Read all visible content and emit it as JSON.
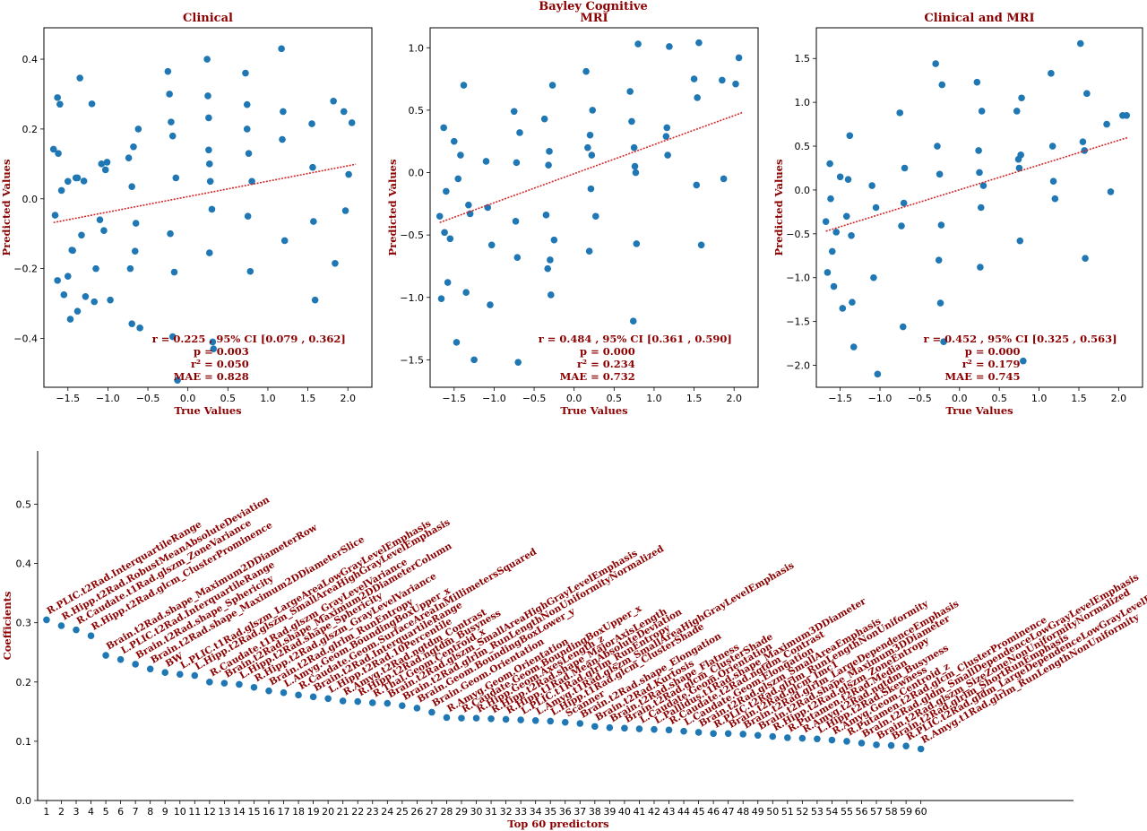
{
  "suptitle": "Bayley Cognitive",
  "chart_data": [
    {
      "type": "scatter",
      "title": "Clinical",
      "xlabel": "True Values",
      "ylabel": "Predicted Values",
      "xlim": [
        -1.8,
        2.3
      ],
      "ylim": [
        -0.54,
        0.49
      ],
      "xticks": [
        -1.5,
        -1.0,
        -0.5,
        0.0,
        0.5,
        1.0,
        1.5,
        2.0
      ],
      "yticks": [
        -0.4,
        -0.2,
        0.0,
        0.2,
        0.4
      ],
      "xtick_labels": [
        "−1.5",
        "−1.0",
        "−0.5",
        "0.0",
        "0.5",
        "1.0",
        "1.5",
        "2.0"
      ],
      "ytick_labels": [
        "−0.4",
        "−0.2",
        "0.0",
        "0.2",
        "0.4"
      ],
      "fit_line": {
        "x": [
          -1.68,
          2.1
        ],
        "y": [
          -0.068,
          0.099
        ]
      },
      "stats": {
        "r": "r = 0.225 , 95% CI [0.079 , 0.362]",
        "p": "p = 0.003",
        "r2": "r² = 0.050",
        "mae": "MAE = 0.828"
      },
      "points": {
        "x": [
          -1.68,
          -1.66,
          -1.63,
          -1.63,
          -1.6,
          -1.58,
          -1.55,
          -1.5,
          -1.5,
          -1.47,
          -1.45,
          -1.4,
          -1.38,
          -1.35,
          -1.33,
          -1.3,
          -1.28,
          -1.2,
          -1.17,
          -1.15,
          -1.1,
          -1.08,
          -1.05,
          -1.03,
          -1.01,
          -0.97,
          -0.74,
          -0.72,
          -0.7,
          -0.68,
          -0.65,
          -0.62,
          -0.6,
          -0.25,
          -0.23,
          -0.21,
          -0.19,
          -0.17,
          -0.15,
          -0.13,
          0.24,
          0.25,
          0.26,
          0.27,
          0.28,
          0.3,
          0.31,
          0.32,
          0.72,
          0.74,
          0.76,
          0.78,
          0.8,
          1.17,
          1.19,
          1.21,
          1.55,
          1.57,
          1.59,
          1.82,
          1.84,
          1.95,
          1.97,
          2.01,
          2.05,
          -1.62,
          -1.44,
          -0.7,
          -0.19,
          0.26,
          0.75,
          1.18,
          -1.38,
          -0.66,
          0.27,
          1.56,
          -0.22,
          0.74
        ],
        "y": [
          0.142,
          -0.047,
          -0.234,
          0.29,
          0.271,
          0.024,
          -0.275,
          0.05,
          -0.222,
          -0.345,
          -0.147,
          0.06,
          -0.322,
          0.346,
          -0.104,
          0.051,
          -0.28,
          0.272,
          -0.295,
          -0.2,
          -0.06,
          0.1,
          -0.091,
          0.083,
          0.105,
          -0.29,
          0.117,
          -0.2,
          -0.358,
          0.149,
          -0.07,
          0.2,
          -0.37,
          0.365,
          0.3,
          0.22,
          -0.395,
          -0.21,
          0.06,
          -0.52,
          0.4,
          0.295,
          0.232,
          -0.155,
          0.05,
          -0.03,
          -0.41,
          -0.43,
          0.36,
          0.27,
          0.13,
          -0.208,
          0.05,
          0.43,
          0.25,
          -0.12,
          0.215,
          -0.065,
          -0.29,
          0.28,
          -0.185,
          0.25,
          -0.034,
          0.07,
          0.218,
          0.13,
          -0.148,
          0.035,
          0.18,
          0.14,
          -0.05,
          0.17,
          0.06,
          -0.15,
          0.1,
          0.09,
          -0.1,
          0.2
        ]
      }
    },
    {
      "type": "scatter",
      "title": "MRI",
      "xlabel": "True Values",
      "ylabel": "Predicted Values",
      "xlim": [
        -1.8,
        2.3
      ],
      "ylim": [
        -1.72,
        1.16
      ],
      "xticks": [
        -1.5,
        -1.0,
        -0.5,
        0.0,
        0.5,
        1.0,
        1.5,
        2.0
      ],
      "yticks": [
        -1.5,
        -1.0,
        -0.5,
        0.0,
        0.5,
        1.0
      ],
      "xtick_labels": [
        "−1.5",
        "−1.0",
        "−0.5",
        "0.0",
        "0.5",
        "1.0",
        "1.5",
        "2.0"
      ],
      "ytick_labels": [
        "−1.5",
        "−1.0",
        "−0.5",
        "0.0",
        "0.5",
        "1.0"
      ],
      "fit_line": {
        "x": [
          -1.68,
          2.1
        ],
        "y": [
          -0.4,
          0.48
        ]
      },
      "stats": {
        "r": "r = 0.484 , 95% CI [0.361 , 0.590]",
        "p": "p = 0.000",
        "r2": "r² = 0.234",
        "mae": "MAE = 0.732"
      },
      "points": {
        "x": [
          -1.68,
          -1.66,
          -1.63,
          -1.6,
          -1.58,
          -1.55,
          -1.5,
          -1.47,
          -1.42,
          -1.38,
          -1.35,
          -1.3,
          -1.25,
          -1.1,
          -1.08,
          -1.05,
          -1.03,
          -0.75,
          -0.73,
          -0.71,
          -0.7,
          -0.68,
          -0.37,
          -0.35,
          -0.33,
          -0.31,
          -0.29,
          -0.27,
          -0.25,
          0.15,
          0.17,
          0.19,
          0.21,
          0.23,
          0.27,
          0.7,
          0.72,
          0.74,
          0.76,
          0.78,
          0.8,
          1.15,
          1.17,
          1.19,
          1.5,
          1.53,
          1.56,
          1.59,
          1.85,
          1.87,
          2.02,
          2.06,
          -1.62,
          -1.32,
          -0.72,
          -0.32,
          0.2,
          0.75,
          1.16,
          1.54,
          -1.45,
          -0.3,
          0.22,
          0.77
        ],
        "y": [
          -0.35,
          -1.01,
          0.36,
          -0.15,
          -0.88,
          -0.53,
          0.25,
          -1.36,
          0.14,
          0.7,
          -0.96,
          -0.33,
          -1.5,
          0.09,
          -0.28,
          -1.06,
          -0.58,
          0.49,
          -0.39,
          -0.68,
          -1.52,
          0.32,
          0.43,
          -0.34,
          -0.77,
          0.17,
          -0.98,
          0.7,
          -0.54,
          0.81,
          0.2,
          -0.63,
          -0.13,
          0.5,
          -0.35,
          0.65,
          0.41,
          -1.19,
          0.05,
          -0.57,
          1.03,
          0.29,
          0.14,
          1.01,
          0.75,
          -0.1,
          1.04,
          -0.58,
          0.74,
          -0.05,
          0.71,
          0.92,
          -0.48,
          -0.26,
          0.08,
          0.06,
          0.3,
          0.2,
          0.36,
          0.6,
          -0.05,
          -0.7,
          0.14,
          0.0
        ]
      }
    },
    {
      "type": "scatter",
      "title": "Clinical and MRI",
      "xlabel": "True Values",
      "ylabel": "Predicted Values",
      "xlim": [
        -1.8,
        2.3
      ],
      "ylim": [
        -2.25,
        1.85
      ],
      "xticks": [
        -1.5,
        -1.0,
        -0.5,
        0.0,
        0.5,
        1.0,
        1.5,
        2.0
      ],
      "yticks": [
        -2.0,
        -1.5,
        -1.0,
        -0.5,
        0.0,
        0.5,
        1.0,
        1.5
      ],
      "xtick_labels": [
        "−1.5",
        "−1.0",
        "−0.5",
        "0.0",
        "0.5",
        "1.0",
        "1.5",
        "2.0"
      ],
      "ytick_labels": [
        "−2.0",
        "−1.5",
        "−1.0",
        "−0.5",
        "0.0",
        "0.5",
        "1.0",
        "1.5"
      ],
      "fit_line": {
        "x": [
          -1.68,
          2.12
        ],
        "y": [
          -0.47,
          0.6
        ]
      },
      "stats": {
        "r": "r = 0.452 , 95% CI [0.325 , 0.563]",
        "p": "p = 0.000",
        "r2": "r² = 0.179",
        "mae": "MAE = 0.745"
      },
      "points": {
        "x": [
          -1.68,
          -1.66,
          -1.63,
          -1.6,
          -1.58,
          -1.55,
          -1.5,
          -1.47,
          -1.42,
          -1.38,
          -1.35,
          -1.33,
          -1.1,
          -1.08,
          -1.05,
          -1.03,
          -0.75,
          -0.73,
          -0.71,
          -0.69,
          -0.3,
          -0.28,
          -0.26,
          -0.24,
          -0.22,
          -0.2,
          0.22,
          0.24,
          0.26,
          0.28,
          0.3,
          0.72,
          0.74,
          0.76,
          0.78,
          0.8,
          1.15,
          1.17,
          1.2,
          1.52,
          1.55,
          1.58,
          1.6,
          1.85,
          1.9,
          2.05,
          2.1,
          -1.62,
          -1.36,
          -0.7,
          -0.25,
          0.25,
          0.75,
          1.18,
          1.57,
          -1.4,
          -0.23,
          0.27,
          0.77
        ],
        "y": [
          -0.36,
          -0.94,
          0.3,
          -0.7,
          -1.1,
          -0.48,
          0.15,
          -1.35,
          -0.3,
          0.62,
          -1.28,
          -1.79,
          0.05,
          -1.0,
          -0.2,
          -2.1,
          0.88,
          -0.41,
          -1.56,
          0.25,
          1.44,
          0.5,
          -0.8,
          -1.29,
          1.2,
          -1.73,
          1.23,
          0.45,
          -0.88,
          0.9,
          0.05,
          0.9,
          0.35,
          -0.58,
          1.05,
          -1.95,
          1.33,
          0.5,
          -0.1,
          1.67,
          0.55,
          -0.78,
          1.1,
          0.75,
          -0.02,
          0.85,
          0.85,
          -0.1,
          -0.52,
          -0.15,
          0.18,
          0.2,
          0.25,
          0.1,
          0.45,
          0.12,
          -0.4,
          -0.2,
          0.4
        ]
      }
    },
    {
      "type": "scatter",
      "title": "",
      "xlabel": "Top 60 predictors",
      "ylabel": "Coefficients",
      "xlim": [
        0.4,
        70.3
      ],
      "ylim": [
        0.0,
        0.59
      ],
      "yticks": [
        0.0,
        0.1,
        0.2,
        0.3,
        0.4,
        0.5
      ],
      "ytick_labels": [
        "0.0",
        "0.1",
        "0.2",
        "0.3",
        "0.4",
        "0.5"
      ],
      "x": [
        1,
        2,
        3,
        4,
        5,
        6,
        7,
        8,
        9,
        10,
        11,
        12,
        13,
        14,
        15,
        16,
        17,
        18,
        19,
        20,
        21,
        22,
        23,
        24,
        25,
        26,
        27,
        28,
        29,
        30,
        31,
        32,
        33,
        34,
        35,
        36,
        37,
        38,
        39,
        40,
        41,
        42,
        43,
        44,
        45,
        46,
        47,
        48,
        49,
        50,
        51,
        52,
        53,
        54,
        55,
        56,
        57,
        58,
        59,
        60
      ],
      "xtick_labels": [
        "1",
        "2",
        "3",
        "4",
        "5",
        "6",
        "7",
        "8",
        "9",
        "10",
        "11",
        "12",
        "13",
        "14",
        "15",
        "16",
        "17",
        "18",
        "19",
        "20",
        "21",
        "22",
        "23",
        "24",
        "25",
        "26",
        "27",
        "28",
        "29",
        "30",
        "31",
        "32",
        "33",
        "34",
        "35",
        "36",
        "37",
        "38",
        "39",
        "40",
        "41",
        "42",
        "43",
        "44",
        "45",
        "46",
        "47",
        "48",
        "49",
        "50",
        "51",
        "52",
        "53",
        "54",
        "55",
        "56",
        "57",
        "58",
        "59",
        "60"
      ],
      "values": [
        0.305,
        0.295,
        0.288,
        0.278,
        0.245,
        0.238,
        0.23,
        0.222,
        0.216,
        0.213,
        0.211,
        0.2,
        0.198,
        0.196,
        0.191,
        0.185,
        0.182,
        0.178,
        0.175,
        0.172,
        0.168,
        0.167,
        0.165,
        0.164,
        0.16,
        0.156,
        0.149,
        0.14,
        0.139,
        0.139,
        0.138,
        0.137,
        0.136,
        0.135,
        0.134,
        0.132,
        0.13,
        0.125,
        0.123,
        0.122,
        0.121,
        0.12,
        0.119,
        0.117,
        0.115,
        0.113,
        0.113,
        0.112,
        0.11,
        0.108,
        0.106,
        0.105,
        0.104,
        0.102,
        0.1,
        0.097,
        0.094,
        0.093,
        0.092,
        0.087
      ],
      "labels": [
        "R.PLIC.t2Rad.InterquartileRange",
        "R.Hipp.t2Rad.RobustMeanAbsoluteDeviation",
        "R.Caudate.t1Rad.glszm_ZoneVariance",
        "R.Hipp.t2Rad.glcm_ClusterProminence",
        "Brain.t2Rad.shape_Maximum2DDiameterRow",
        "L.PLIC.t2Rad.InterquartileRange",
        "Brain.t2Rad.shape_Sphericity",
        "Brain.t2Rad.shape_Maximum2DDiameterSlice",
        "BW",
        "L.PLIC.t1Rad.glszm_LargeAreaLowGrayLevelEmphasis",
        "L.Hipp.t2Rad.glszm_SmallAreaHighGrayLevelEmphasis",
        "R.Caudate.t1Rad.glszm_GrayLevelVariance",
        "Brain.t2Rad.shape_Maximum2DDiameterColumn",
        "L.Hipp.t2Rad.shape_Sphericity",
        "R.Hipp.t2Rad.glszm_GrayLevelVariance",
        "Brain.t2Rad.glrlm_RunEntropy",
        "L.Amyg.Geom.BoundingBoxUpper_x",
        "R.Caudate.Geom.SurfaceAreaInMillimetersSquared",
        "Brain.t2Rad.InterquartileRange",
        "L.Hipp.t2Rad.10Percentile",
        "R.Amyg.t2Rad.ngtdm_Contrast",
        "R.Hipp.t2Rad.ngtdm_Busyness",
        "R.Thal.Geom.Centroid_x",
        "Brain.t2Rad.glszm_SmallAreaHighGrayLevelEmphasis",
        "Brain.t2Rad.glrlm_RunLengthNonUniformityNormalized",
        "Brain.Geom.BoundingBoxLower_y",
        "Brain.Geom.Orientation",
        "R.Amyg.Geom.Orientation",
        "R.Caudate.Geom.BoundingBoxUpper_x",
        "R.Hipp.Geom.AxesLength_z",
        "R.Hipp.t2Rad.shape_MajorAxisLength",
        "R.Hipp.t1Rad.MeanAbsoluteDeviation",
        "L.PLIC.t1Rad.glrlm_RunEntropy",
        "L.Amyg.t1Rad.glszm_SmallAreaHighGrayLevelEmphasis",
        "L.Hipp.t1Rad.glcm_ClusterShade",
        "Scanner",
        "Brain.t2Rad.shape_Elongation",
        "Brain.t2Rad.Kurtosis",
        "Brain.t2Rad.shape_Flatness",
        "Brain.t2Rad.glcm_ClusterShade",
        "L.Caudate.Geom.Orientation",
        "L.Pallidus.t1Rad.shape_Maximum3DDiameter",
        "R.Caudate.t2Rad.ngtdm_Contrast",
        "L.Caudate.Geom.Elongation",
        "Brain.t2Rad.glszm_SmallAreaEmphasis",
        "R.PLIC.t2Rad.glrlm_RunLengthNonUniformity",
        "Brain.t2Rad.glcm_Imc1",
        "Brain.t2Rad.glrlm_LargeDependenceEmphasis",
        "Brain.t2Rad.shape_Maximum3DDiameter",
        "R.Hipp.t2Rad.glszm_ZoneEntropy",
        "R.Putamen.t2Rad.Median",
        "R.Amyg.t2Rad.ngtdm_Busyness",
        "L.Hipp.t2Rad.Skewness",
        "R.Amyg.Geom.Centroid_z",
        "R.Putamen.t2Rad.glcm_ClusterProminence",
        "Brain.t2Rad.gldm_SmallDependenceLowGrayLevelEmphasis",
        "Brain.t2Rad.glszm_SizeZoneNonUniformityNormalized",
        "Brain.t2Rad.glrlm_ShortRunEmphasis",
        "R.PLIC.t2Rad.gldm_LargeDependenceLowGrayLevelEmphasis",
        "R.Amyg.t1Rad.glrlm_RunLengthNonUniformity"
      ]
    }
  ]
}
